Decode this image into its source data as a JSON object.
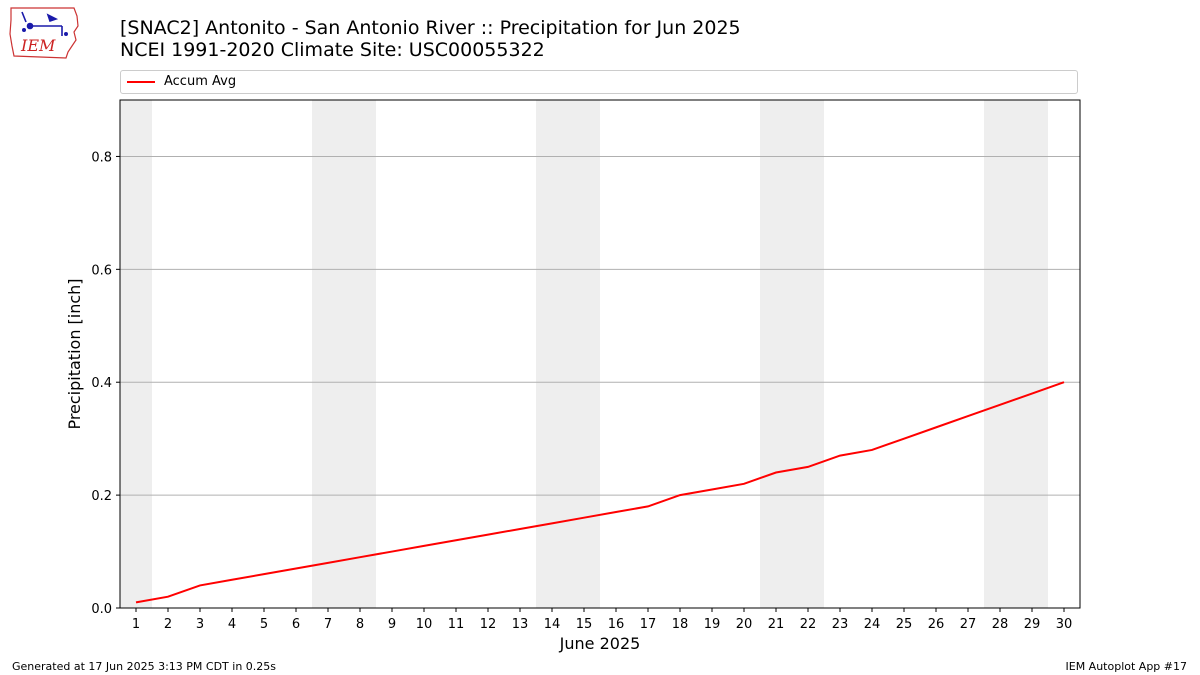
{
  "header": {
    "title_line1": "[SNAC2] Antonito - San Antonio River :: Precipitation for Jun 2025",
    "title_line2": "NCEI 1991-2020 Climate Site: USC00055322"
  },
  "logo": {
    "text": "IEM",
    "icon": "iem-iowa-logo"
  },
  "legend": {
    "label": "Accum Avg",
    "position": "top"
  },
  "footer": {
    "generated": "Generated at 17 Jun 2025 3:13 PM CDT in 0.25s",
    "app": "IEM Autoplot App #17"
  },
  "colors": {
    "line": "#ff0000",
    "weekend_band": "#eeeeee",
    "grid": "#b0b0b0"
  },
  "chart_data": {
    "type": "line",
    "title": "[SNAC2] Antonito - San Antonio River :: Precipitation for Jun 2025",
    "subtitle": "NCEI 1991-2020 Climate Site: USC00055322",
    "xlabel": "June 2025",
    "ylabel": "Precipitation [inch]",
    "xlim": [
      0.5,
      30.5
    ],
    "ylim": [
      0,
      0.9
    ],
    "grid": "horizontal",
    "x": [
      1,
      2,
      3,
      4,
      5,
      6,
      7,
      8,
      9,
      10,
      11,
      12,
      13,
      14,
      15,
      16,
      17,
      18,
      19,
      20,
      21,
      22,
      23,
      24,
      25,
      26,
      27,
      28,
      29,
      30
    ],
    "x_tick_labels": [
      "1",
      "2",
      "3",
      "4",
      "5",
      "6",
      "7",
      "8",
      "9",
      "10",
      "11",
      "12",
      "13",
      "14",
      "15",
      "16",
      "17",
      "18",
      "19",
      "20",
      "21",
      "22",
      "23",
      "24",
      "25",
      "26",
      "27",
      "28",
      "29",
      "30"
    ],
    "y_ticks": [
      0.0,
      0.2,
      0.4,
      0.6,
      0.8
    ],
    "y_tick_labels": [
      "0.0",
      "0.2",
      "0.4",
      "0.6",
      "0.8"
    ],
    "weekend_days": [
      1,
      7,
      8,
      14,
      15,
      21,
      22,
      28,
      29
    ],
    "series": [
      {
        "name": "Accum Avg",
        "color": "#ff0000",
        "values": [
          0.01,
          0.02,
          0.04,
          0.05,
          0.06,
          0.07,
          0.08,
          0.09,
          0.1,
          0.11,
          0.12,
          0.13,
          0.14,
          0.15,
          0.16,
          0.17,
          0.18,
          0.2,
          0.21,
          0.22,
          0.24,
          0.25,
          0.27,
          0.28,
          0.3,
          0.32,
          0.34,
          0.36,
          0.38,
          0.4
        ]
      }
    ]
  }
}
